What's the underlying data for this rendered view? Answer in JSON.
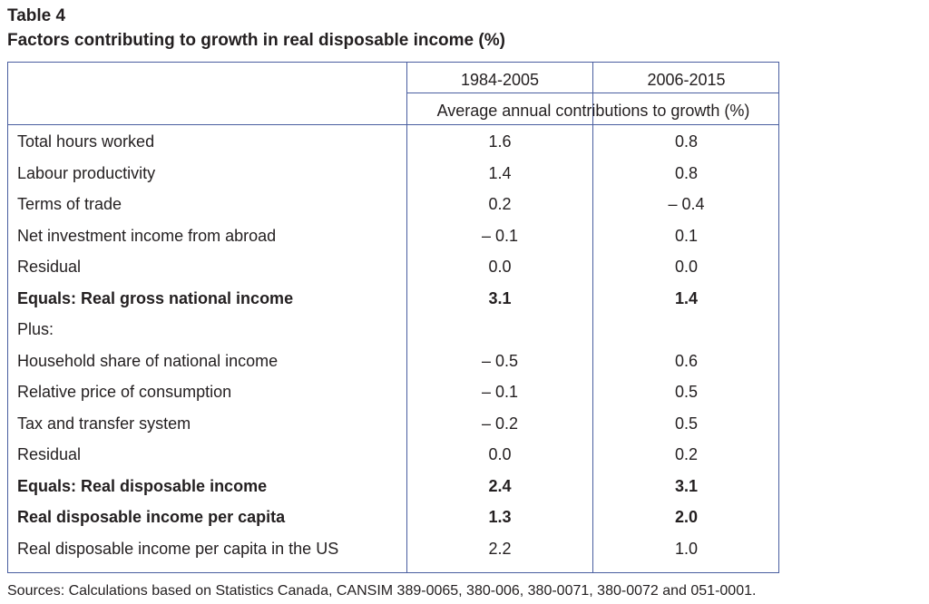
{
  "table_label": "Table 4",
  "title": "Factors contributing to growth in real disposable income (%)",
  "columns": [
    "1984-2005",
    "2006-2015"
  ],
  "subheader": "Average annual contributions to growth (%)",
  "rows": [
    {
      "label": "Total hours worked",
      "v1": "1.6",
      "v2": "0.8"
    },
    {
      "label": "Labour productivity",
      "v1": "1.4",
      "v2": "0.8"
    },
    {
      "label": "Terms of trade",
      "v1": "0.2",
      "v2": "– 0.4"
    },
    {
      "label": "Net investment income from abroad",
      "v1": "– 0.1",
      "v2": "0.1"
    },
    {
      "label": "Residual",
      "v1": "0.0",
      "v2": "0.0"
    },
    {
      "label": "Equals: Real gross national income",
      "v1": "3.1",
      "v2": "1.4"
    },
    {
      "label": "Plus:",
      "v1": "",
      "v2": ""
    },
    {
      "label": "Household share of national income",
      "v1": "– 0.5",
      "v2": "0.6"
    },
    {
      "label": "Relative price of consumption",
      "v1": "– 0.1",
      "v2": "0.5"
    },
    {
      "label": "Tax and transfer system",
      "v1": "– 0.2",
      "v2": "0.5"
    },
    {
      "label": "Residual",
      "v1": "0.0",
      "v2": "0.2"
    },
    {
      "label": "Equals: Real disposable income",
      "v1": "2.4",
      "v2": "3.1"
    },
    {
      "label": "Real disposable income per capita",
      "v1": "1.3",
      "v2": "2.0"
    },
    {
      "label": "Real disposable income per capita in the US",
      "v1": "2.2",
      "v2": "1.0"
    }
  ],
  "source": "Sources: Calculations based on Statistics Canada, CANSIM 389-0065, 380-006, 380-0071, 380-0072 and 051-0001."
}
